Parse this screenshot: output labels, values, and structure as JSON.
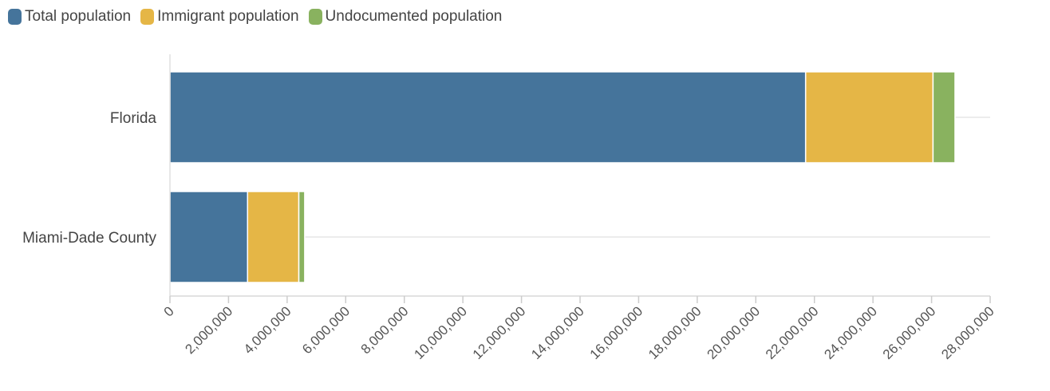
{
  "chart_data": {
    "type": "bar",
    "orientation": "horizontal",
    "stacked": true,
    "categories": [
      "Florida",
      "Miami-Dade County"
    ],
    "series": [
      {
        "name": "Total population",
        "color": "#45749b",
        "values": [
          21700000,
          2650000
        ]
      },
      {
        "name": "Immigrant population",
        "color": "#e5b646",
        "values": [
          4350000,
          1750000
        ]
      },
      {
        "name": "Undocumented population",
        "color": "#89b25f",
        "values": [
          750000,
          200000
        ]
      }
    ],
    "xlim": [
      0,
      28000000
    ],
    "xticks": [
      0,
      2000000,
      4000000,
      6000000,
      8000000,
      10000000,
      12000000,
      14000000,
      16000000,
      18000000,
      20000000,
      22000000,
      24000000,
      26000000,
      28000000
    ],
    "xtick_labels": [
      "0",
      "2,000,000",
      "4,000,000",
      "6,000,000",
      "8,000,000",
      "10,000,000",
      "12,000,000",
      "14,000,000",
      "16,000,000",
      "18,000,000",
      "20,000,000",
      "22,000,000",
      "24,000,000",
      "26,000,000",
      "28,000,000"
    ],
    "title": "",
    "xlabel": "",
    "ylabel": "",
    "grid": "horizontal category lines",
    "legend_position": "top-left"
  }
}
